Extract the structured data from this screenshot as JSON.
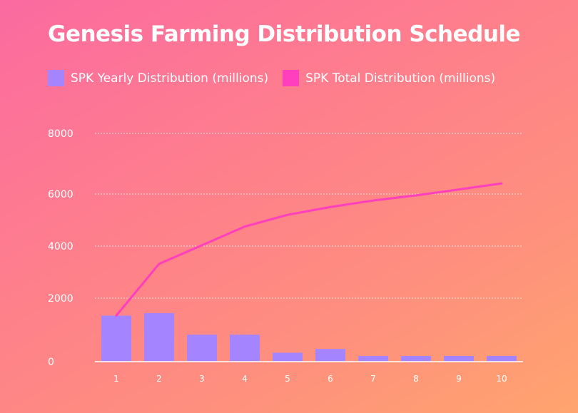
{
  "chart_data": {
    "type": "bar",
    "title": "Genesis Farming Distribution Schedule",
    "categories": [
      "1",
      "2",
      "3",
      "4",
      "5",
      "6",
      "7",
      "8",
      "9",
      "10"
    ],
    "series": [
      {
        "name": "SPK Yearly Distribution (millions)",
        "kind": "bar",
        "color": "#a585ff",
        "values": [
          1450,
          1530,
          850,
          850,
          280,
          400,
          180,
          180,
          180,
          180
        ]
      },
      {
        "name": "SPK Total Distribution (millions)",
        "kind": "line",
        "color": "#ff3fbd",
        "values": [
          1450,
          3320,
          4030,
          4750,
          5200,
          5500,
          5750,
          5950,
          6150,
          6350
        ]
      }
    ],
    "yticks": [
      "0",
      "2000",
      "4000",
      "6000",
      "8000"
    ],
    "ylim": [
      0,
      8000
    ],
    "xlabel": "",
    "ylabel": "",
    "grid": true,
    "legend_position": "top-left"
  }
}
